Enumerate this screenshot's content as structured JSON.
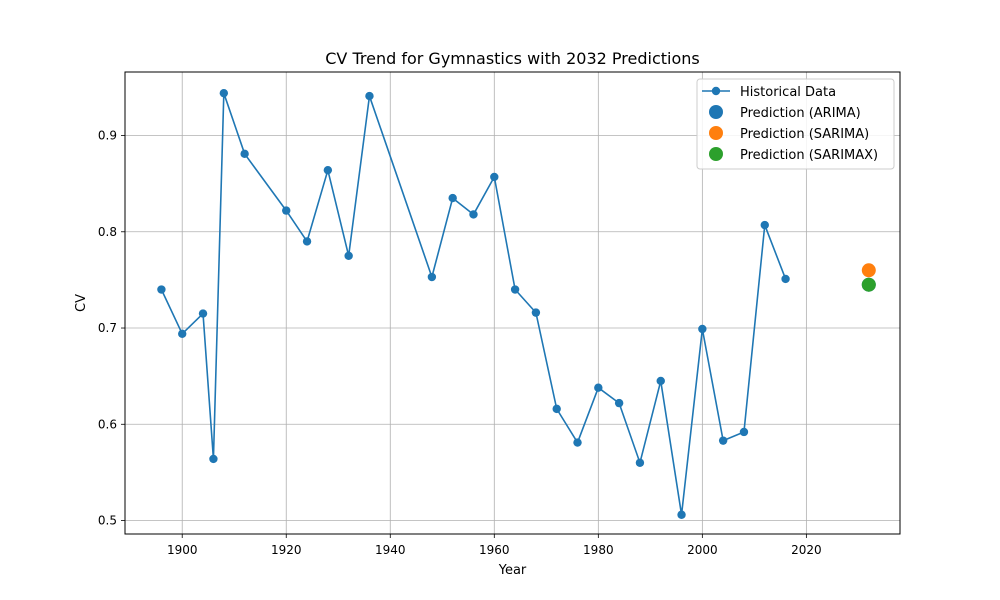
{
  "chart_data": {
    "type": "line",
    "title": "CV Trend for Gymnastics with 2032 Predictions",
    "xlabel": "Year",
    "ylabel": "CV",
    "xlim": [
      1889,
      2038
    ],
    "ylim": [
      0.486,
      0.966
    ],
    "xticks": [
      1900,
      1920,
      1940,
      1960,
      1980,
      2000,
      2020
    ],
    "yticks": [
      0.5,
      0.6,
      0.7,
      0.8,
      0.9
    ],
    "grid": true,
    "legend_position": "top-right",
    "series": [
      {
        "name": "Historical Data",
        "kind": "line-markers",
        "color": "#1f77b4",
        "x": [
          1896,
          1900,
          1904,
          1906,
          1908,
          1912,
          1920,
          1924,
          1928,
          1932,
          1936,
          1948,
          1952,
          1956,
          1960,
          1964,
          1968,
          1972,
          1976,
          1980,
          1984,
          1988,
          1992,
          1996,
          2000,
          2004,
          2008,
          2012,
          2016
        ],
        "y": [
          0.74,
          0.694,
          0.715,
          0.564,
          0.944,
          0.881,
          0.822,
          0.79,
          0.864,
          0.775,
          0.941,
          0.753,
          0.835,
          0.818,
          0.857,
          0.74,
          0.716,
          0.616,
          0.581,
          0.638,
          0.622,
          0.56,
          0.645,
          0.506,
          0.699,
          0.583,
          0.592,
          0.807,
          0.751
        ]
      },
      {
        "name": "Prediction (ARIMA)",
        "kind": "point",
        "color": "#1f77b4",
        "x": [
          2032
        ],
        "y": [
          0.745
        ]
      },
      {
        "name": "Prediction (SARIMA)",
        "kind": "point",
        "color": "#ff7f0e",
        "x": [
          2032
        ],
        "y": [
          0.76
        ]
      },
      {
        "name": "Prediction (SARIMAX)",
        "kind": "point",
        "color": "#2ca02c",
        "x": [
          2032
        ],
        "y": [
          0.745
        ]
      }
    ]
  }
}
